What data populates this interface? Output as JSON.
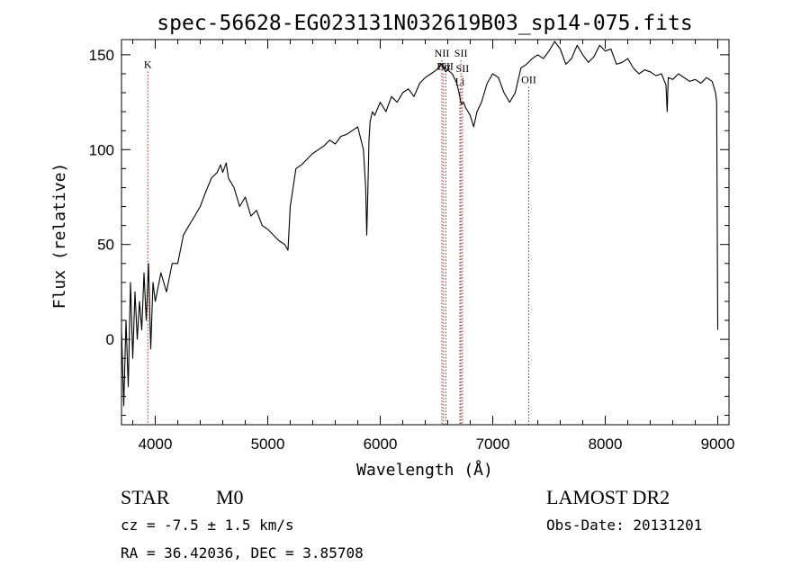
{
  "chart_data": {
    "type": "line",
    "title": "spec-56628-EG023131N032619B03_sp14-075.fits",
    "xlabel": "Wavelength (Å)",
    "ylabel": "Flux (relative)",
    "xlim": [
      3700,
      9100
    ],
    "ylim": [
      -45,
      158
    ],
    "x_ticks": [
      4000,
      5000,
      6000,
      7000,
      8000,
      9000
    ],
    "y_ticks": [
      0,
      50,
      100,
      150
    ],
    "grid": false,
    "series": [
      {
        "x": [
          3700,
          3720,
          3740,
          3760,
          3780,
          3800,
          3820,
          3840,
          3860,
          3880,
          3900,
          3920,
          3940,
          3960,
          3980,
          4000,
          4050,
          4100,
          4150,
          4200,
          4250,
          4300,
          4350,
          4400,
          4450,
          4500,
          4550,
          4580,
          4600,
          4630,
          4650,
          4700,
          4750,
          4800,
          4850,
          4900,
          4950,
          5000,
          5050,
          5100,
          5150,
          5180,
          5200,
          5250,
          5300,
          5350,
          5400,
          5450,
          5500,
          5550,
          5600,
          5650,
          5700,
          5750,
          5800,
          5850,
          5870,
          5880,
          5890,
          5900,
          5910,
          5930,
          5950,
          6000,
          6050,
          6100,
          6150,
          6200,
          6250,
          6300,
          6350,
          6400,
          6450,
          6500,
          6540,
          6560,
          6580,
          6600,
          6640,
          6680,
          6700,
          6720,
          6740,
          6760,
          6800,
          6830,
          6860,
          6900,
          6950,
          7000,
          7050,
          7100,
          7150,
          7200,
          7250,
          7300,
          7350,
          7400,
          7450,
          7500,
          7550,
          7600,
          7650,
          7700,
          7750,
          7800,
          7850,
          7900,
          7950,
          8000,
          8050,
          8100,
          8150,
          8200,
          8250,
          8300,
          8350,
          8400,
          8450,
          8500,
          8540,
          8550,
          8560,
          8600,
          8650,
          8700,
          8750,
          8800,
          8850,
          8900,
          8950,
          8980,
          8990,
          9000
        ],
        "y": [
          5,
          -35,
          10,
          -25,
          30,
          -10,
          25,
          0,
          20,
          5,
          35,
          10,
          40,
          -5,
          30,
          20,
          35,
          25,
          40,
          40,
          55,
          60,
          65,
          70,
          78,
          85,
          88,
          92,
          88,
          93,
          85,
          80,
          70,
          75,
          65,
          68,
          60,
          58,
          55,
          52,
          50,
          47,
          70,
          90,
          92,
          95,
          98,
          100,
          102,
          105,
          103,
          107,
          108,
          110,
          112,
          100,
          80,
          55,
          80,
          105,
          115,
          120,
          118,
          125,
          120,
          128,
          125,
          130,
          132,
          128,
          135,
          138,
          140,
          142,
          145,
          144,
          141,
          142,
          140,
          135,
          130,
          124,
          125,
          122,
          118,
          112,
          120,
          125,
          135,
          140,
          138,
          130,
          125,
          130,
          143,
          145,
          148,
          150,
          148,
          152,
          157,
          153,
          145,
          148,
          155,
          150,
          146,
          149,
          155,
          152,
          153,
          145,
          146,
          148,
          143,
          140,
          142,
          141,
          139,
          140,
          134,
          120,
          138,
          137,
          140,
          138,
          136,
          137,
          135,
          138,
          136,
          130,
          125,
          5
        ]
      }
    ],
    "reference_lines": [
      {
        "x": 3934,
        "label": "K",
        "label_y": 143
      },
      {
        "x": 6548,
        "label": "NII",
        "label_y": 149
      },
      {
        "x": 6563,
        "label": "Hα",
        "label_y": 142
      },
      {
        "x": 6584,
        "label": "NII",
        "label_y": 142
      },
      {
        "x": 6708,
        "label": "Li",
        "label_y": 134
      },
      {
        "x": 6717,
        "label": "SII",
        "label_y": 149
      },
      {
        "x": 6731,
        "label": "SII",
        "label_y": 141
      },
      {
        "x": 7320,
        "label": "OII",
        "label_y": 135
      }
    ]
  },
  "info": {
    "object_class": "STAR",
    "subclass": "M0",
    "survey": "LAMOST DR2",
    "redshift": "cz = -7.5 ± 1.5 km/s",
    "obs_date": "Obs-Date: 20131201",
    "coords": "RA =  36.42036, DEC =   3.85708"
  },
  "colors": {
    "spectrum": "#000000",
    "reference_line": "#a52a2a",
    "axes": "#000000"
  }
}
